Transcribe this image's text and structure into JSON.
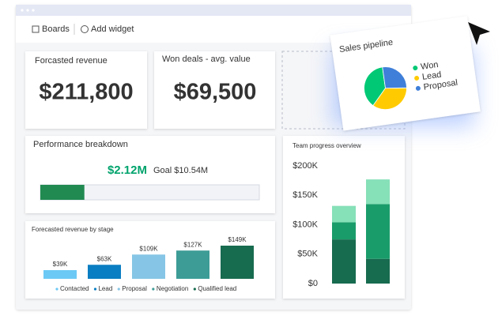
{
  "toolbar": {
    "boards": "Boards",
    "add_widget": "Add widget"
  },
  "cards": [
    {
      "title": "Forcasted revenue",
      "value": "$211,800"
    },
    {
      "title": "Won deals - avg. value",
      "value": "$69,500"
    }
  ],
  "performance": {
    "title": "Performance breakdown",
    "value": 2.12,
    "value_label": "$2.12M",
    "goal": 10.54,
    "goal_label": "Goal $10.54M"
  },
  "chart_data": [
    {
      "type": "bar",
      "title": "Forecasted revenue by stage",
      "categories": [
        "Contacted",
        "Lead",
        "Proposal",
        "Negotiation",
        "Qualified lead"
      ],
      "values": [
        39000,
        63000,
        109000,
        127000,
        149000
      ],
      "value_labels": [
        "$39K",
        "$63K",
        "$109K",
        "$127K",
        "$149K"
      ],
      "colors": [
        "#6cc9f5",
        "#0a7ec2",
        "#86c5e5",
        "#3d9c96",
        "#176b4f"
      ]
    },
    {
      "type": "stacked_bar",
      "title": "Team progress overview",
      "categories": [
        null,
        null
      ],
      "series": [
        {
          "color": "#176b4f",
          "values": [
            75000,
            42000
          ]
        },
        {
          "color": "#1a9c6a",
          "values": [
            29000,
            93000
          ]
        },
        {
          "color": "#86e0b8",
          "values": [
            28000,
            42000
          ]
        }
      ],
      "ylim": [
        0,
        200000
      ],
      "yticks": [
        {
          "value": 0,
          "label": "$0"
        },
        {
          "value": 50000,
          "label": "$50K"
        },
        {
          "value": 100000,
          "label": "$100K"
        },
        {
          "value": 150000,
          "label": "$150K"
        },
        {
          "value": 200000,
          "label": "$200K"
        }
      ]
    },
    {
      "type": "pie",
      "title": "Sales pipeline",
      "categories": [
        "Won",
        "Lead",
        "Proposal"
      ],
      "values": [
        38,
        35,
        27
      ],
      "colors": [
        "#00c875",
        "#ffcb00",
        "#3f7fd9"
      ],
      "legend": "right"
    }
  ]
}
